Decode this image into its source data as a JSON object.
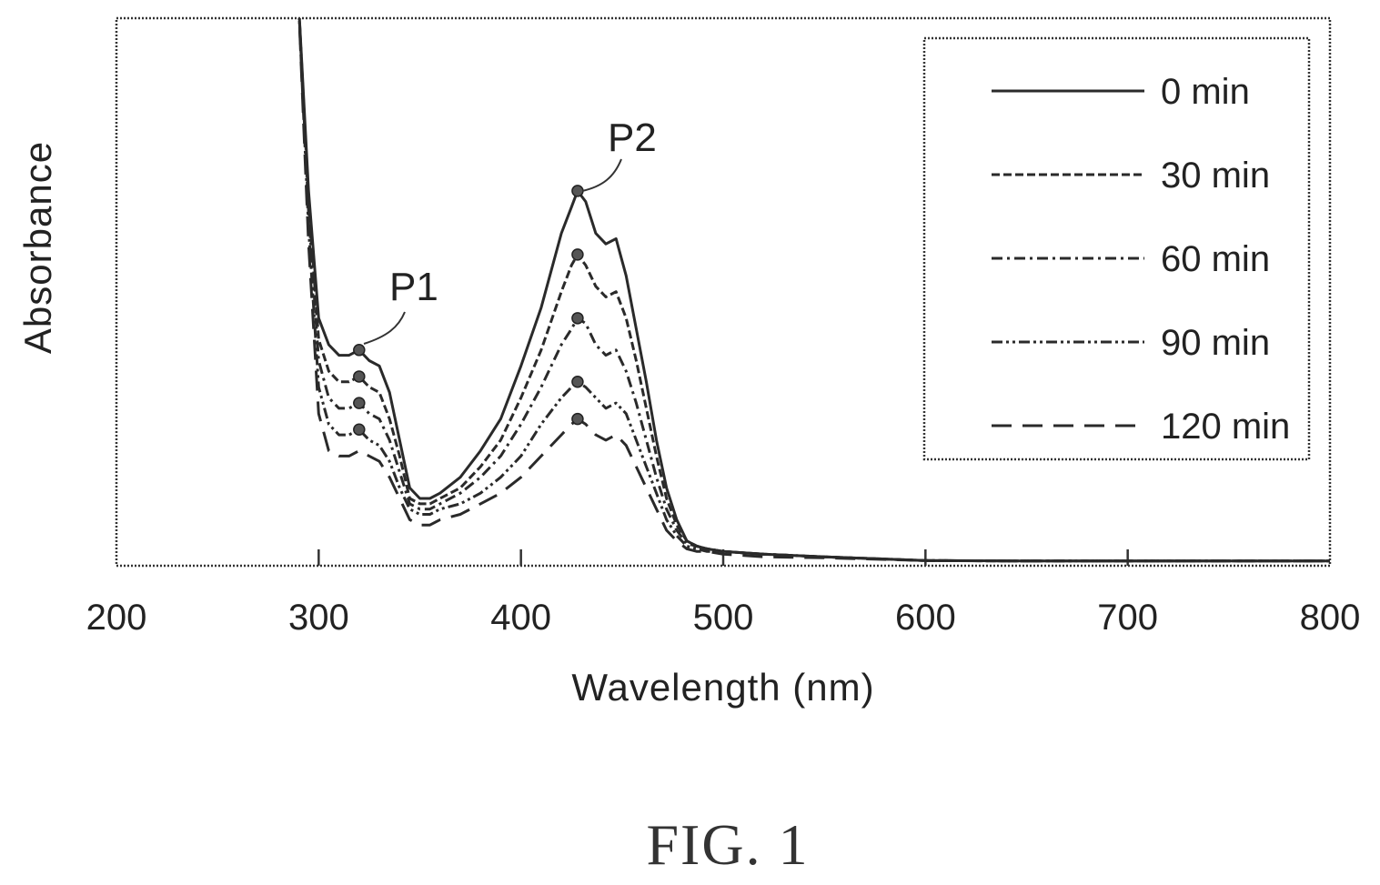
{
  "chart_data": {
    "type": "line",
    "title": "",
    "xlabel": "Wavelength (nm)",
    "ylabel": "Absorbance",
    "xlim": [
      200,
      800
    ],
    "ylim": [
      0,
      1.0
    ],
    "x_ticks": [
      "200",
      "300",
      "400",
      "500",
      "600",
      "700",
      "800"
    ],
    "y_ticks_shown": false,
    "grid": false,
    "legend_position": "top-right",
    "x": [
      290,
      295,
      300,
      305,
      310,
      315,
      320,
      325,
      330,
      335,
      340,
      345,
      350,
      355,
      360,
      370,
      380,
      390,
      400,
      410,
      420,
      425,
      428,
      432,
      437,
      442,
      447,
      452,
      457,
      462,
      467,
      472,
      477,
      482,
      487,
      492,
      500,
      520,
      550,
      600,
      650,
      700,
      750,
      800
    ],
    "series": [
      {
        "name": "0 min",
        "style": "solid",
        "values": [
          1.06,
          0.7,
          0.46,
          0.41,
          0.39,
          0.39,
          0.4,
          0.38,
          0.37,
          0.32,
          0.23,
          0.14,
          0.12,
          0.12,
          0.13,
          0.16,
          0.21,
          0.27,
          0.37,
          0.48,
          0.62,
          0.67,
          0.7,
          0.68,
          0.62,
          0.6,
          0.61,
          0.54,
          0.44,
          0.34,
          0.23,
          0.14,
          0.08,
          0.04,
          0.03,
          0.025,
          0.02,
          0.015,
          0.01,
          0.003,
          0.002,
          0.002,
          0.002,
          0.002
        ]
      },
      {
        "name": "30 min",
        "style": "dashed-fine",
        "values": [
          1.06,
          0.68,
          0.42,
          0.36,
          0.34,
          0.34,
          0.35,
          0.33,
          0.32,
          0.27,
          0.2,
          0.12,
          0.11,
          0.11,
          0.12,
          0.14,
          0.18,
          0.23,
          0.31,
          0.4,
          0.51,
          0.56,
          0.58,
          0.56,
          0.52,
          0.5,
          0.51,
          0.46,
          0.38,
          0.29,
          0.2,
          0.12,
          0.07,
          0.04,
          0.03,
          0.025,
          0.02,
          0.015,
          0.01,
          0.003,
          0.002,
          0.002,
          0.002,
          0.002
        ]
      },
      {
        "name": "60 min",
        "style": "dash-dot",
        "values": [
          1.06,
          0.66,
          0.38,
          0.31,
          0.29,
          0.29,
          0.3,
          0.28,
          0.27,
          0.23,
          0.17,
          0.11,
          0.1,
          0.1,
          0.11,
          0.13,
          0.16,
          0.2,
          0.26,
          0.33,
          0.41,
          0.44,
          0.46,
          0.45,
          0.41,
          0.39,
          0.4,
          0.36,
          0.3,
          0.23,
          0.16,
          0.1,
          0.06,
          0.035,
          0.03,
          0.025,
          0.02,
          0.015,
          0.01,
          0.003,
          0.002,
          0.002,
          0.002,
          0.002
        ]
      },
      {
        "name": "90 min",
        "style": "dash-dot-dot",
        "values": [
          1.06,
          0.63,
          0.33,
          0.26,
          0.24,
          0.24,
          0.25,
          0.23,
          0.22,
          0.19,
          0.14,
          0.1,
          0.09,
          0.09,
          0.1,
          0.11,
          0.13,
          0.16,
          0.2,
          0.26,
          0.31,
          0.33,
          0.34,
          0.33,
          0.31,
          0.29,
          0.3,
          0.28,
          0.23,
          0.18,
          0.13,
          0.08,
          0.05,
          0.03,
          0.025,
          0.02,
          0.02,
          0.015,
          0.01,
          0.003,
          0.002,
          0.002,
          0.002,
          0.002
        ]
      },
      {
        "name": "120 min",
        "style": "long-dash",
        "values": [
          1.06,
          0.6,
          0.28,
          0.21,
          0.2,
          0.2,
          0.21,
          0.2,
          0.19,
          0.16,
          0.12,
          0.08,
          0.07,
          0.07,
          0.08,
          0.09,
          0.11,
          0.13,
          0.16,
          0.2,
          0.24,
          0.26,
          0.27,
          0.26,
          0.24,
          0.23,
          0.24,
          0.22,
          0.18,
          0.14,
          0.1,
          0.06,
          0.04,
          0.025,
          0.02,
          0.02,
          0.015,
          0.01,
          0.008,
          0.003,
          0.002,
          0.002,
          0.002,
          0.002
        ]
      }
    ],
    "annotations": [
      {
        "text": "P1",
        "x": 320,
        "y": 0.4
      },
      {
        "text": "P2",
        "x": 428,
        "y": 0.7
      }
    ],
    "peak_markers": [
      {
        "x": 320,
        "y": [
          0.4,
          0.35,
          0.3,
          0.25
        ]
      },
      {
        "x": 428,
        "y": [
          0.7,
          0.58,
          0.46,
          0.34,
          0.27
        ]
      }
    ]
  },
  "figure_caption": "FIG. 1"
}
